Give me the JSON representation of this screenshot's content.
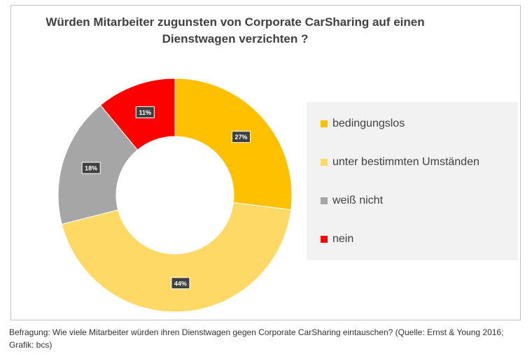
{
  "chart_data": {
    "type": "pie",
    "variant": "donut",
    "title_lines": [
      "Würden Mitarbeiter zugunsten von Corporate CarSharing auf einen",
      "Dienstwagen verzichten ?"
    ],
    "categories": [
      "bedingungslos",
      "unter bestimmten Umständen",
      "weiß nicht",
      "nein"
    ],
    "values": [
      27,
      44,
      18,
      11
    ],
    "data_labels": [
      "27%",
      "44%",
      "18%",
      "11%"
    ],
    "colors": [
      "#ffc000",
      "#ffd966",
      "#a6a6a6",
      "#ff0000"
    ],
    "legend_position": "right"
  },
  "caption": "Befragung: Wie viele Mitarbeiter würden ihren Dienstwagen gegen Corporate CarSharing eintauschen? (Quelle: Ernst & Young 2016; Grafik: bcs)"
}
